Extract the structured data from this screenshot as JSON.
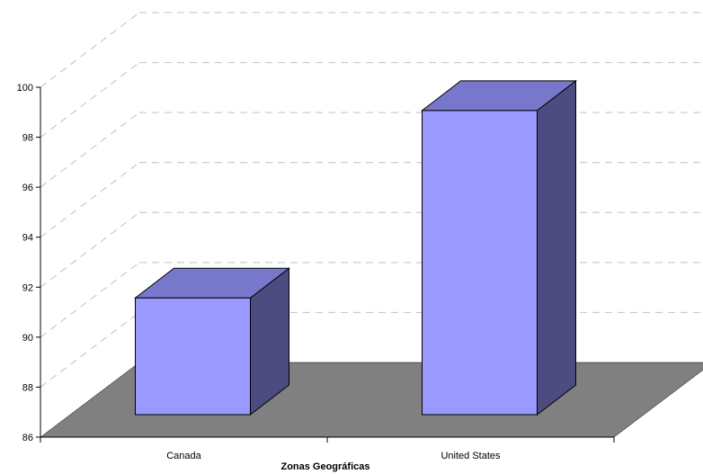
{
  "chart_data": {
    "type": "bar",
    "three_d": true,
    "categories": [
      "Canada",
      "United States"
    ],
    "values": [
      92.0,
      99.5
    ],
    "xlabel": "Zonas Geográficas",
    "ylabel": "",
    "ylim": [
      86,
      100
    ],
    "yticks": [
      86,
      88,
      90,
      92,
      94,
      96,
      98,
      100
    ],
    "grid": true,
    "legend": "none",
    "colors": {
      "bar_front": "#9999ff",
      "bar_top": "#7777cc",
      "bar_side": "#4c4c80",
      "floor": "#808080",
      "grid": "#c0c0c0"
    }
  }
}
